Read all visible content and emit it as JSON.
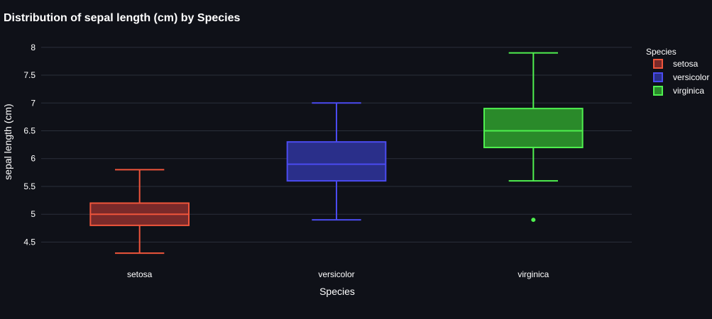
{
  "chart_data": {
    "type": "box",
    "title": "Distribution of sepal length (cm) by Species",
    "xlabel": "Species",
    "ylabel": "sepal length (cm)",
    "categories": [
      "setosa",
      "versicolor",
      "virginica"
    ],
    "ylim": [
      4.2,
      8.15
    ],
    "yticks": [
      "4.5",
      "5",
      "5.5",
      "6",
      "6.5",
      "7",
      "7.5",
      "8"
    ],
    "grid": true,
    "legend": {
      "title": "Species",
      "placement": "top-right"
    },
    "series": [
      {
        "name": "setosa",
        "color": "#ef553b",
        "fill": "#7a2a2a",
        "min": 4.3,
        "q1": 4.8,
        "median": 5.0,
        "q3": 5.2,
        "max": 5.8,
        "outliers": []
      },
      {
        "name": "versicolor",
        "color": "#4b4bf0",
        "fill": "#2a2f8a",
        "min": 4.9,
        "q1": 5.6,
        "median": 5.9,
        "q3": 6.3,
        "max": 7.0,
        "outliers": []
      },
      {
        "name": "virginica",
        "color": "#4ff04f",
        "fill": "#2a8a2a",
        "min": 5.6,
        "q1": 6.2,
        "median": 6.5,
        "q3": 6.9,
        "max": 7.9,
        "outliers": [
          4.9
        ]
      }
    ]
  }
}
